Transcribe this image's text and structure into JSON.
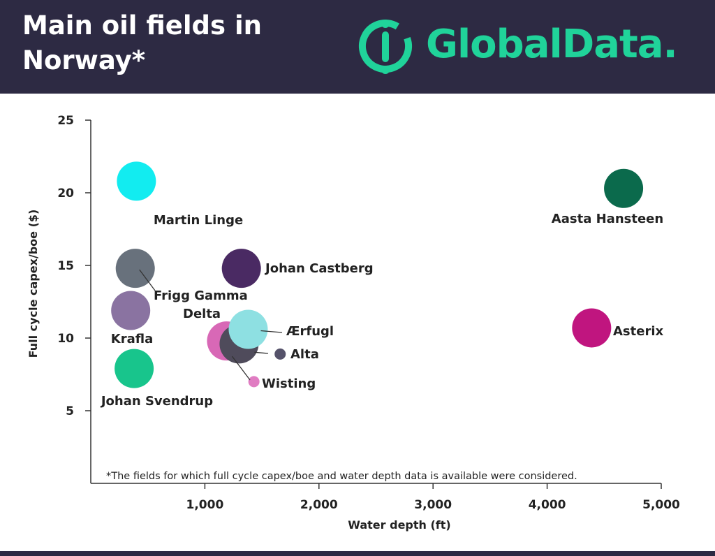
{
  "header": {
    "title": "Main oil fields in Norway*",
    "brand": {
      "name": "GlobalData.",
      "icon": "globaldata-logo-icon",
      "color": "#20d39a"
    },
    "background": "#2d2a43"
  },
  "chart_data": {
    "type": "scatter",
    "bubble": true,
    "title": "Main oil fields in Norway*",
    "xlabel": "Water depth (ft)",
    "ylabel": "Full cycle capex/boe ($)",
    "xlim": [
      0,
      5000
    ],
    "ylim": [
      0,
      25
    ],
    "xticks": [
      1000,
      2000,
      3000,
      4000,
      5000
    ],
    "xtick_labels": [
      "1,000",
      "2,000",
      "3,000",
      "4,000",
      "5,000"
    ],
    "yticks": [
      5,
      10,
      15,
      20,
      25
    ],
    "ytick_labels": [
      "5",
      "10",
      "15",
      "20",
      "25"
    ],
    "grid": false,
    "note": "*The fields for which full cycle capex/boe and water depth data is available were considered.",
    "points": [
      {
        "name": "Martin Linge",
        "x": 400,
        "y": 20.8,
        "size": "large",
        "color": "#12ecf0"
      },
      {
        "name": "Aasta Hansteen",
        "x": 4670,
        "y": 20.3,
        "size": "large",
        "color": "#0b6a4c"
      },
      {
        "name": "Frigg Gamma Delta",
        "x": 390,
        "y": 14.8,
        "size": "large",
        "color": "#68717c"
      },
      {
        "name": "Johan Castberg",
        "x": 1320,
        "y": 14.8,
        "size": "large",
        "color": "#4a2a63"
      },
      {
        "name": "Krafla",
        "x": 350,
        "y": 11.9,
        "size": "large",
        "color": "#8a73a1"
      },
      {
        "name": "Asterix",
        "x": 4390,
        "y": 10.7,
        "size": "large",
        "color": "#c0157f"
      },
      {
        "name": "Wisting",
        "x": 1430,
        "y": 7.0,
        "size": "small",
        "color": "#e07cc2"
      },
      {
        "name": "Wisting (bubble)",
        "x": 1190,
        "y": 9.8,
        "size": "large",
        "color": "#d868b6"
      },
      {
        "name": "Alta (bubble)",
        "x": 1300,
        "y": 9.6,
        "size": "large",
        "color": "#4f4b5b"
      },
      {
        "name": "Ærfugl",
        "x": 1380,
        "y": 10.6,
        "size": "large",
        "color": "#8ee0e2"
      },
      {
        "name": "Alta",
        "x": 1660,
        "y": 8.9,
        "size": "small",
        "color": "#55526a"
      },
      {
        "name": "Johan Svendrup",
        "x": 380,
        "y": 7.9,
        "size": "large",
        "color": "#18c58c"
      }
    ],
    "labels": [
      {
        "text": "Martin Linge"
      },
      {
        "text": "Aasta Hansteen"
      },
      {
        "text": "Johan Castberg"
      },
      {
        "text": "Frigg Gamma"
      },
      {
        "text": "Delta"
      },
      {
        "text": "Krafla"
      },
      {
        "text": "Ærfugl"
      },
      {
        "text": "Asterix"
      },
      {
        "text": "Alta"
      },
      {
        "text": "Wisting"
      },
      {
        "text": "Johan Svendrup"
      }
    ]
  }
}
